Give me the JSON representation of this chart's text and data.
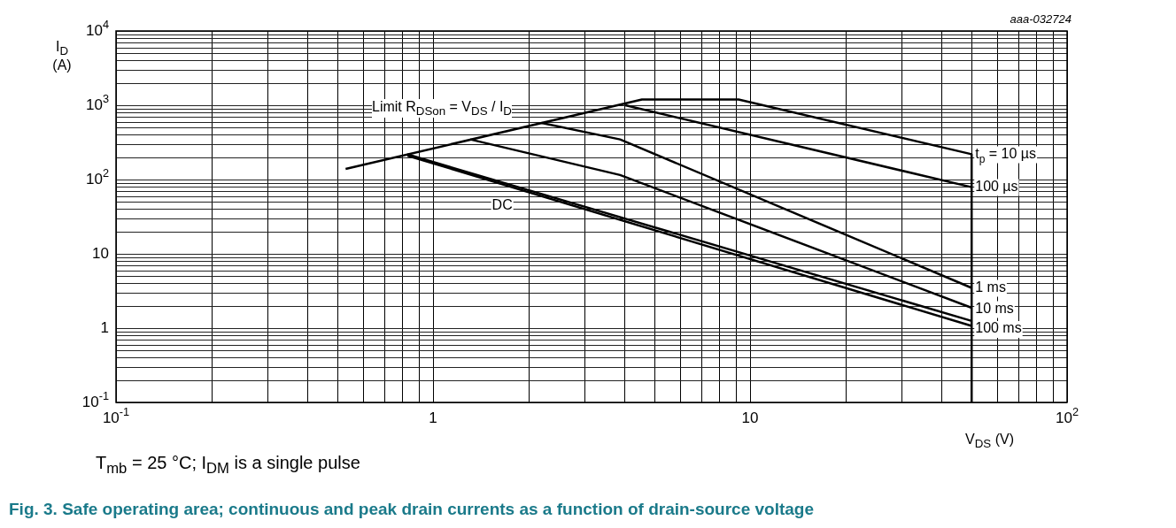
{
  "chart_data": {
    "type": "line",
    "title": "Fig. 3.    Safe operating area; continuous and peak drain currents as a function of drain-source voltage",
    "xlabel": "V$_{DS}$ (V)",
    "ylabel": "I$_{D}$ (A)",
    "log": "xy",
    "grid": true,
    "legend": false,
    "marker": "none",
    "line_style": "solid",
    "xlim": [
      0.1,
      100
    ],
    "ylim": [
      0.1,
      10000
    ],
    "xticks": [
      {
        "value": 0.1,
        "label": "10$^{-1}$"
      },
      1,
      10,
      {
        "value": 100,
        "label": "10$^{2}$"
      }
    ],
    "yticks": [
      {
        "value": 0.1,
        "label": "10$^{-1}$"
      },
      1,
      10,
      {
        "value": 100,
        "label": "10$^{2}$"
      },
      {
        "value": 1000,
        "label": "10$^{3}$"
      },
      {
        "value": 10000,
        "label": "10$^{4}$"
      }
    ],
    "series": [
      {
        "name": "t$_{p}$ = 10 µs",
        "color": "#000000",
        "x": [
          0.53,
          4.56,
          9.2,
          50
        ],
        "values": [
          139,
          1194,
          1194,
          219
        ]
      },
      {
        "name": "100 µs",
        "color": "#000000",
        "x": [
          4.04,
          50
        ],
        "values": [
          1000,
          79
        ]
      },
      {
        "name": "1 ms",
        "color": "#000000",
        "x": [
          2.2,
          3.89,
          50
        ],
        "values": [
          578,
          347,
          3.48
        ]
      },
      {
        "name": "10 ms",
        "color": "#000000",
        "x": [
          1.31,
          3.89,
          50
        ],
        "values": [
          347,
          115,
          1.88
        ]
      },
      {
        "name": "100 ms",
        "color": "#000000",
        "x": [
          0.83,
          50
        ],
        "values": [
          218,
          1.25
        ]
      },
      {
        "name": "DC",
        "color": "#000000",
        "x": [
          0.83,
          50
        ],
        "values": [
          210,
          1.07
        ]
      },
      {
        "color": "#000000",
        "x": [
          50,
          50
        ],
        "values": [
          219,
          0.1
        ]
      }
    ],
    "annotations": [
      "aaa-032724",
      "T$_{mb}$ = 25 °C; I$_{DM}$ is a single pulse",
      "Limit R$_{DSon}$ = V$_{DS}$ / I$_{D}$"
    ]
  }
}
